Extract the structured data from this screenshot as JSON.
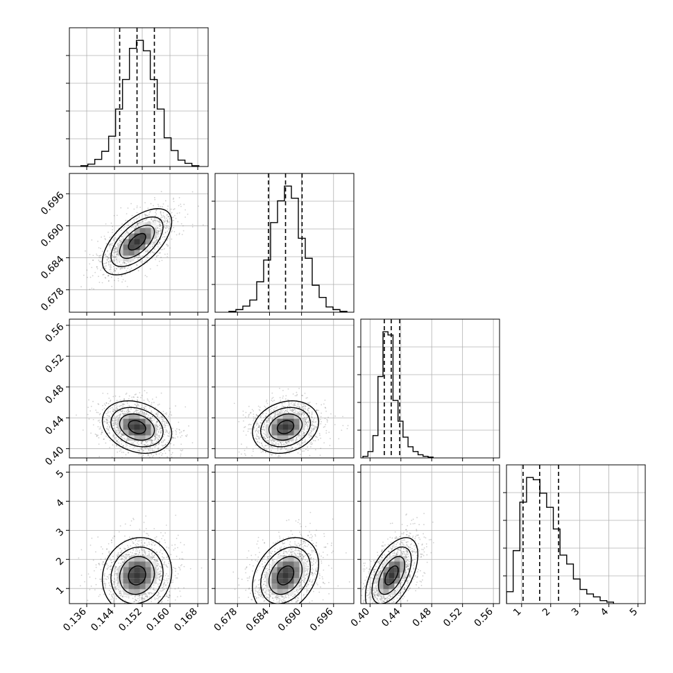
{
  "chart_data": {
    "type": "corner",
    "parameters": 4,
    "grid": true,
    "axes": [
      {
        "ticks": [
          0.136,
          0.144,
          0.152,
          0.16,
          0.168
        ],
        "tick_labels": [
          "0.136",
          "0.144",
          "0.152",
          "0.160",
          "0.168"
        ],
        "lim": [
          0.131,
          0.171
        ]
      },
      {
        "ticks": [
          0.678,
          0.684,
          0.69,
          0.696
        ],
        "tick_labels": [
          "0.678",
          "0.684",
          "0.690",
          "0.696"
        ],
        "lim": [
          0.6738,
          0.6998
        ]
      },
      {
        "ticks": [
          0.4,
          0.44,
          0.48,
          0.52,
          0.56
        ],
        "tick_labels": [
          "0.40",
          "0.44",
          "0.48",
          "0.52",
          "0.56"
        ],
        "lim": [
          0.388,
          0.568
        ]
      },
      {
        "ticks": [
          1,
          2,
          3,
          4,
          5
        ],
        "tick_labels": [
          "1",
          "2",
          "3",
          "4",
          "5"
        ],
        "lim": [
          0.48,
          5.25
        ]
      }
    ],
    "marginals": [
      {
        "bins": [
          0.13432,
          0.13632,
          0.13832,
          0.14032,
          0.14232,
          0.14432,
          0.14632,
          0.14832,
          0.15032,
          0.15232,
          0.15432,
          0.15632,
          0.15832,
          0.16032,
          0.16232,
          0.16432,
          0.16632,
          0.16832
        ],
        "counts": [
          1,
          3,
          9,
          19,
          38,
          72,
          109,
          148,
          158,
          145,
          109,
          72,
          36,
          20,
          8,
          4,
          1
        ],
        "quantiles": [
          0.1455,
          0.1505,
          0.1555
        ]
      },
      {
        "bins": [
          0.6764,
          0.6777,
          0.679,
          0.6803,
          0.6816,
          0.6829,
          0.6842,
          0.6855,
          0.6868,
          0.6881,
          0.6894,
          0.6907,
          0.692,
          0.6933,
          0.6946,
          0.6959,
          0.6972,
          0.6985
        ],
        "counts": [
          1,
          3,
          7,
          14,
          35,
          60,
          103,
          128,
          145,
          131,
          85,
          62,
          31,
          17,
          6,
          3,
          1
        ],
        "quantiles": [
          0.6838,
          0.687,
          0.6901
        ]
      },
      {
        "bins": [
          0.3908,
          0.3973,
          0.4038,
          0.4103,
          0.4168,
          0.4233,
          0.4298,
          0.4363,
          0.4428,
          0.4493,
          0.4558,
          0.4623,
          0.4688,
          0.4753,
          0.4818
        ],
        "counts": [
          1,
          4,
          14,
          51,
          79,
          77,
          36,
          23,
          13,
          7,
          4,
          2,
          1,
          0.5
        ],
        "quantiles": [
          0.4185,
          0.4275,
          0.4385
        ]
      },
      {
        "bins": [
          0.48,
          0.71,
          0.94,
          1.17,
          1.4,
          1.63,
          1.86,
          2.09,
          2.32,
          2.55,
          2.78,
          3.01,
          3.24,
          3.47,
          3.7,
          3.93,
          4.16
        ],
        "counts": [
          16,
          71,
          136,
          169,
          166,
          148,
          129,
          100,
          65,
          53,
          33,
          19,
          13,
          9,
          4,
          2
        ],
        "quantiles": [
          1.05,
          1.62,
          2.27
        ]
      }
    ],
    "joint": [
      {
        "row": 1,
        "col": 0,
        "mean": [
          0.1505,
          0.687
        ],
        "sd": [
          0.005,
          0.0031
        ],
        "rho": 0.6
      },
      {
        "row": 2,
        "col": 0,
        "mean": [
          0.1505,
          0.428
        ],
        "sd": [
          0.005,
          0.017
        ],
        "rho": -0.25
      },
      {
        "row": 2,
        "col": 1,
        "mean": [
          0.687,
          0.428
        ],
        "sd": [
          0.0031,
          0.017
        ],
        "rho": 0.2
      },
      {
        "row": 3,
        "col": 0,
        "mean": [
          0.1505,
          1.45
        ],
        "sd": [
          0.005,
          0.65
        ],
        "rho": 0.1
      },
      {
        "row": 3,
        "col": 1,
        "mean": [
          0.687,
          1.45
        ],
        "sd": [
          0.0031,
          0.65
        ],
        "rho": 0.3
      },
      {
        "row": 3,
        "col": 2,
        "mean": [
          0.428,
          1.45
        ],
        "sd": [
          0.017,
          0.65
        ],
        "rho": 0.55
      }
    ],
    "colors": {
      "axes": "#000000",
      "grid": "#b0b0b0",
      "line": "#000000",
      "points": "#555555"
    }
  }
}
